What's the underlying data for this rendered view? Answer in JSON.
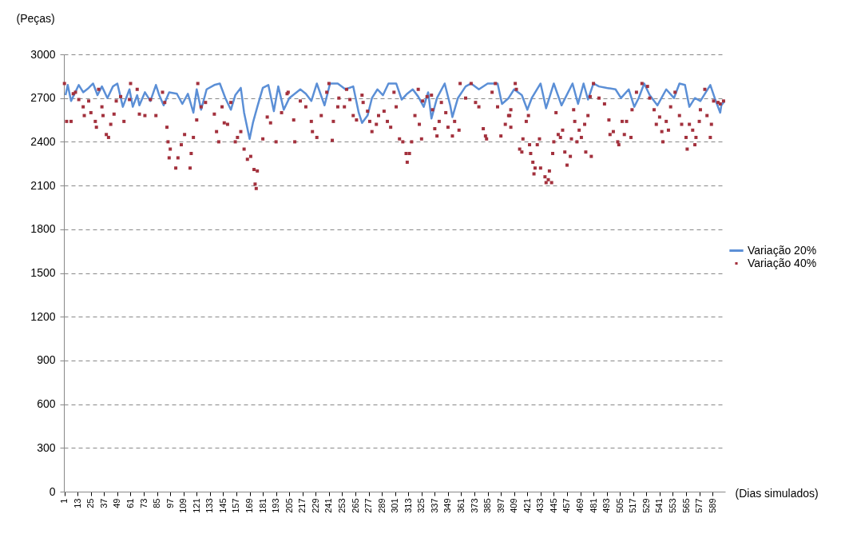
{
  "chart_data": {
    "type": "line",
    "ylabel": "(Peças)",
    "xlabel": "(Dias simulados)",
    "xlim": [
      0.5,
      600.5
    ],
    "ylim": [
      0,
      3000
    ],
    "yticks": [
      0,
      300,
      600,
      900,
      1200,
      1500,
      1800,
      2100,
      2400,
      2700,
      3000
    ],
    "xticks": [
      1,
      13,
      25,
      37,
      49,
      61,
      73,
      85,
      97,
      109,
      121,
      133,
      145,
      157,
      169,
      181,
      193,
      205,
      217,
      229,
      241,
      253,
      265,
      277,
      289,
      301,
      313,
      325,
      337,
      349,
      361,
      373,
      385,
      397,
      409,
      421,
      433,
      445,
      457,
      469,
      481,
      493,
      505,
      517,
      529,
      541,
      553,
      565,
      577,
      589
    ],
    "grid": "y",
    "legend": "right",
    "series": [
      {
        "name": "Variação 20%",
        "color": "#5b8fd6",
        "marker": "none",
        "x": [
          2,
          4,
          7,
          14,
          18,
          23,
          27,
          31,
          35,
          40,
          45,
          49,
          54,
          60,
          63,
          67,
          69,
          74,
          79,
          84,
          87,
          91,
          96,
          103,
          108,
          113,
          118,
          121,
          125,
          130,
          137,
          142,
          147,
          152,
          156,
          161,
          164,
          169,
          172,
          176,
          181,
          186,
          191,
          195,
          200,
          205,
          215,
          220,
          225,
          230,
          237,
          242,
          249,
          256,
          263,
          268,
          271,
          276,
          280,
          285,
          290,
          295,
          302,
          307,
          312,
          317,
          322,
          327,
          331,
          334,
          339,
          346,
          351,
          353,
          358,
          365,
          370,
          377,
          385,
          394,
          398,
          404,
          409,
          416,
          421,
          425,
          433,
          438,
          445,
          452,
          462,
          467,
          472,
          476,
          481,
          486,
          493,
          501,
          506,
          513,
          518,
          522,
          527,
          532,
          539,
          547,
          554,
          559,
          564,
          568,
          573,
          578,
          587,
          591,
          596,
          597,
          600
        ],
        "values": [
          2720,
          2790,
          2680,
          2790,
          2740,
          2770,
          2800,
          2720,
          2780,
          2700,
          2780,
          2800,
          2640,
          2760,
          2640,
          2720,
          2650,
          2740,
          2680,
          2790,
          2720,
          2650,
          2740,
          2730,
          2660,
          2730,
          2600,
          2760,
          2620,
          2760,
          2790,
          2800,
          2700,
          2620,
          2720,
          2770,
          2600,
          2420,
          2530,
          2640,
          2770,
          2790,
          2610,
          2780,
          2620,
          2700,
          2760,
          2730,
          2680,
          2800,
          2650,
          2800,
          2800,
          2760,
          2780,
          2600,
          2530,
          2580,
          2700,
          2760,
          2720,
          2800,
          2800,
          2690,
          2730,
          2760,
          2710,
          2640,
          2740,
          2560,
          2700,
          2800,
          2650,
          2570,
          2700,
          2780,
          2800,
          2760,
          2800,
          2800,
          2660,
          2700,
          2760,
          2720,
          2620,
          2700,
          2800,
          2630,
          2800,
          2650,
          2800,
          2660,
          2800,
          2690,
          2800,
          2780,
          2770,
          2760,
          2700,
          2760,
          2640,
          2700,
          2800,
          2720,
          2650,
          2760,
          2700,
          2800,
          2790,
          2640,
          2700,
          2680,
          2790,
          2700,
          2600,
          2650,
          2680
        ]
      },
      {
        "name": "Variação 40%",
        "type": "scatter",
        "color": "#a3313d",
        "marker": "square",
        "x": [
          1,
          3,
          7,
          9,
          11,
          14,
          18,
          19,
          23,
          25,
          29,
          30,
          32,
          35,
          36,
          39,
          41,
          43,
          46,
          48,
          52,
          55,
          60,
          61,
          67,
          69,
          74,
          79,
          84,
          90,
          92,
          94,
          95,
          97,
          96,
          102,
          104,
          107,
          110,
          115,
          116,
          118,
          121,
          122,
          125,
          129,
          137,
          139,
          141,
          144,
          146,
          149,
          152,
          156,
          158,
          161,
          164,
          167,
          170,
          173,
          176,
          174,
          175,
          181,
          185,
          188,
          193,
          198,
          203,
          204,
          209,
          210,
          215,
          220,
          225,
          226,
          230,
          234,
          239,
          241,
          244,
          245,
          249,
          250,
          255,
          257,
          260,
          263,
          266,
          271,
          272,
          276,
          278,
          280,
          284,
          286,
          291,
          294,
          297,
          300,
          302,
          305,
          308,
          311,
          312,
          314,
          316,
          319,
          322,
          323,
          325,
          326,
          330,
          334,
          335,
          337,
          339,
          341,
          343,
          347,
          349,
          353,
          355,
          360,
          359,
          365,
          370,
          374,
          377,
          381,
          383,
          384,
          389,
          392,
          394,
          397,
          401,
          404,
          406,
          410,
          405,
          406,
          411,
          414,
          416,
          417,
          420,
          422,
          423,
          424,
          426,
          427,
          428,
          430,
          432,
          433,
          437,
          438,
          440,
          441,
          443,
          444,
          445,
          447,
          449,
          451,
          453,
          455,
          457,
          460,
          461,
          463,
          464,
          466,
          468,
          470,
          473,
          474,
          476,
          479,
          478,
          481,
          486,
          491,
          495,
          496,
          499,
          503,
          504,
          507,
          509,
          511,
          515,
          516,
          520,
          525,
          530,
          532,
          536,
          538,
          541,
          543,
          544,
          547,
          549,
          551,
          555,
          559,
          561,
          565,
          566,
          568,
          571,
          573,
          574,
          577,
          578,
          582,
          584,
          587,
          588,
          590,
          594,
          596,
          599
        ],
        "values": [
          2800,
          2540,
          2540,
          2730,
          2740,
          2690,
          2640,
          2580,
          2680,
          2600,
          2540,
          2500,
          2760,
          2640,
          2580,
          2450,
          2430,
          2520,
          2590,
          2680,
          2710,
          2540,
          2690,
          2800,
          2760,
          2590,
          2580,
          2690,
          2580,
          2740,
          2670,
          2500,
          2400,
          2350,
          2290,
          2220,
          2290,
          2380,
          2450,
          2220,
          2320,
          2430,
          2550,
          2800,
          2640,
          2670,
          2590,
          2470,
          2400,
          2640,
          2530,
          2520,
          2670,
          2400,
          2430,
          2470,
          2350,
          2280,
          2300,
          2210,
          2200,
          2110,
          2080,
          2420,
          2570,
          2530,
          2400,
          2600,
          2730,
          2740,
          2550,
          2400,
          2680,
          2640,
          2540,
          2470,
          2430,
          2580,
          2740,
          2800,
          2410,
          2540,
          2640,
          2700,
          2640,
          2760,
          2690,
          2580,
          2550,
          2720,
          2670,
          2610,
          2540,
          2470,
          2520,
          2580,
          2610,
          2540,
          2500,
          2740,
          2640,
          2420,
          2400,
          2320,
          2260,
          2320,
          2400,
          2580,
          2760,
          2520,
          2420,
          2680,
          2710,
          2720,
          2620,
          2490,
          2440,
          2540,
          2670,
          2600,
          2500,
          2440,
          2540,
          2800,
          2480,
          2700,
          2800,
          2670,
          2640,
          2490,
          2440,
          2420,
          2740,
          2800,
          2640,
          2440,
          2520,
          2580,
          2620,
          2800,
          2580,
          2500,
          2760,
          2350,
          2330,
          2420,
          2540,
          2580,
          2380,
          2320,
          2260,
          2180,
          2220,
          2380,
          2420,
          2220,
          2160,
          2120,
          2140,
          2200,
          2120,
          2320,
          2400,
          2600,
          2450,
          2430,
          2480,
          2330,
          2240,
          2300,
          2420,
          2620,
          2540,
          2400,
          2480,
          2430,
          2520,
          2330,
          2580,
          2300,
          2710,
          2800,
          2700,
          2660,
          2550,
          2450,
          2470,
          2400,
          2380,
          2540,
          2450,
          2540,
          2430,
          2620,
          2740,
          2800,
          2780,
          2700,
          2620,
          2520,
          2570,
          2470,
          2400,
          2540,
          2480,
          2640,
          2740,
          2580,
          2520,
          2430,
          2350,
          2520,
          2480,
          2380,
          2430,
          2540,
          2620,
          2760,
          2580,
          2430,
          2520,
          2680,
          2670,
          2660,
          2680
        ]
      }
    ]
  }
}
